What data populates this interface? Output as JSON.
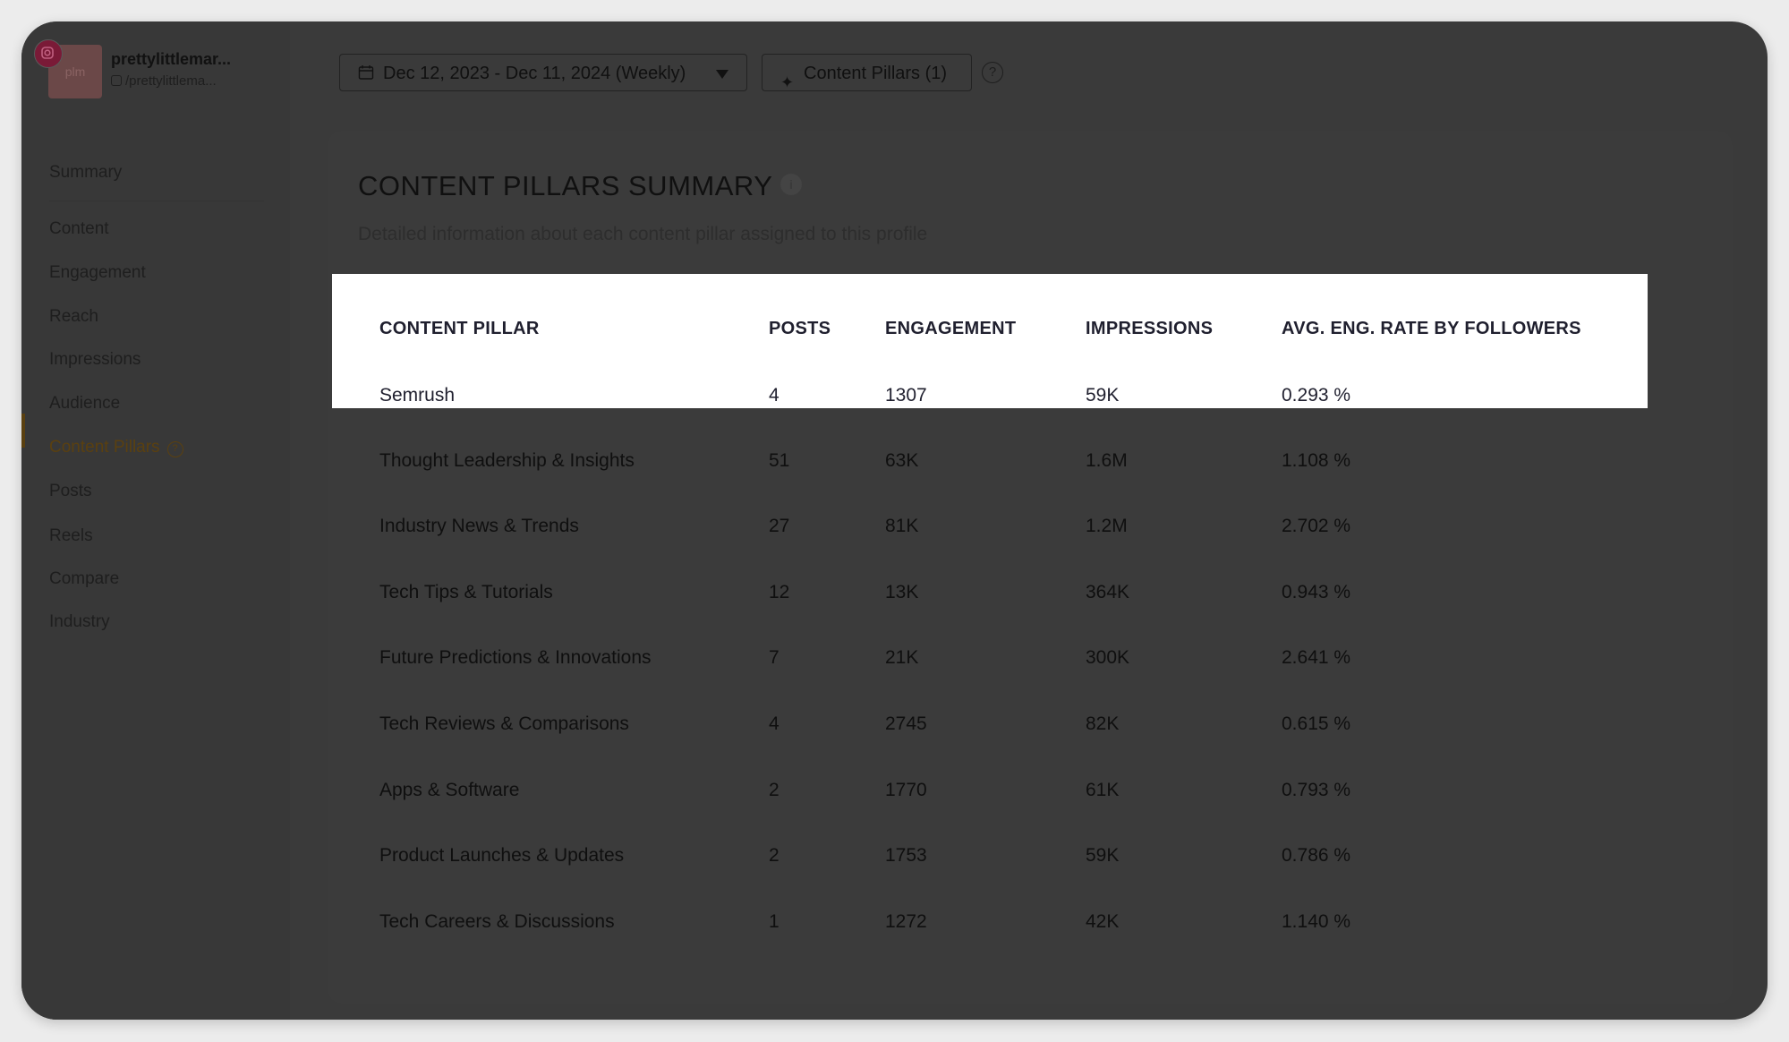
{
  "profile": {
    "name": "prettylittlemar...",
    "handle": "/prettylittlema...",
    "avatar_text": "plm"
  },
  "sidebar": {
    "items": [
      {
        "label": "Summary"
      },
      {
        "label": "Content"
      },
      {
        "label": "Engagement"
      },
      {
        "label": "Reach"
      },
      {
        "label": "Impressions"
      },
      {
        "label": "Audience"
      },
      {
        "label": "Content Pillars",
        "active": true
      },
      {
        "label": "Posts"
      },
      {
        "label": "Reels"
      },
      {
        "label": "Compare"
      },
      {
        "label": "Industry"
      }
    ]
  },
  "toolbar": {
    "date_range": "Dec 12, 2023 - Dec 11, 2024 (Weekly)",
    "pillars_filter": "Content Pillars (1)",
    "help": "?"
  },
  "summary": {
    "title": "CONTENT PILLARS SUMMARY",
    "subtitle": "Detailed information about each content pillar assigned to this profile",
    "info": "i",
    "columns": [
      "CONTENT PILLAR",
      "POSTS",
      "ENGAGEMENT",
      "IMPRESSIONS",
      "AVG. ENG. RATE BY FOLLOWERS"
    ],
    "rows": [
      [
        "Semrush",
        "4",
        "1307",
        "59K",
        "0.293 %"
      ],
      [
        "Thought Leadership & Insights",
        "51",
        "63K",
        "1.6M",
        "1.108 %"
      ],
      [
        "Industry News & Trends",
        "27",
        "81K",
        "1.2M",
        "2.702 %"
      ],
      [
        "Tech Tips & Tutorials",
        "12",
        "13K",
        "364K",
        "0.943 %"
      ],
      [
        "Future Predictions & Innovations",
        "7",
        "21K",
        "300K",
        "2.641 %"
      ],
      [
        "Tech Reviews & Comparisons",
        "4",
        "2745",
        "82K",
        "0.615 %"
      ],
      [
        "Apps & Software",
        "2",
        "1770",
        "61K",
        "0.793 %"
      ],
      [
        "Product Launches & Updates",
        "2",
        "1753",
        "59K",
        "0.786 %"
      ],
      [
        "Tech Careers & Discussions",
        "1",
        "1272",
        "42K",
        "1.140 %"
      ]
    ]
  }
}
